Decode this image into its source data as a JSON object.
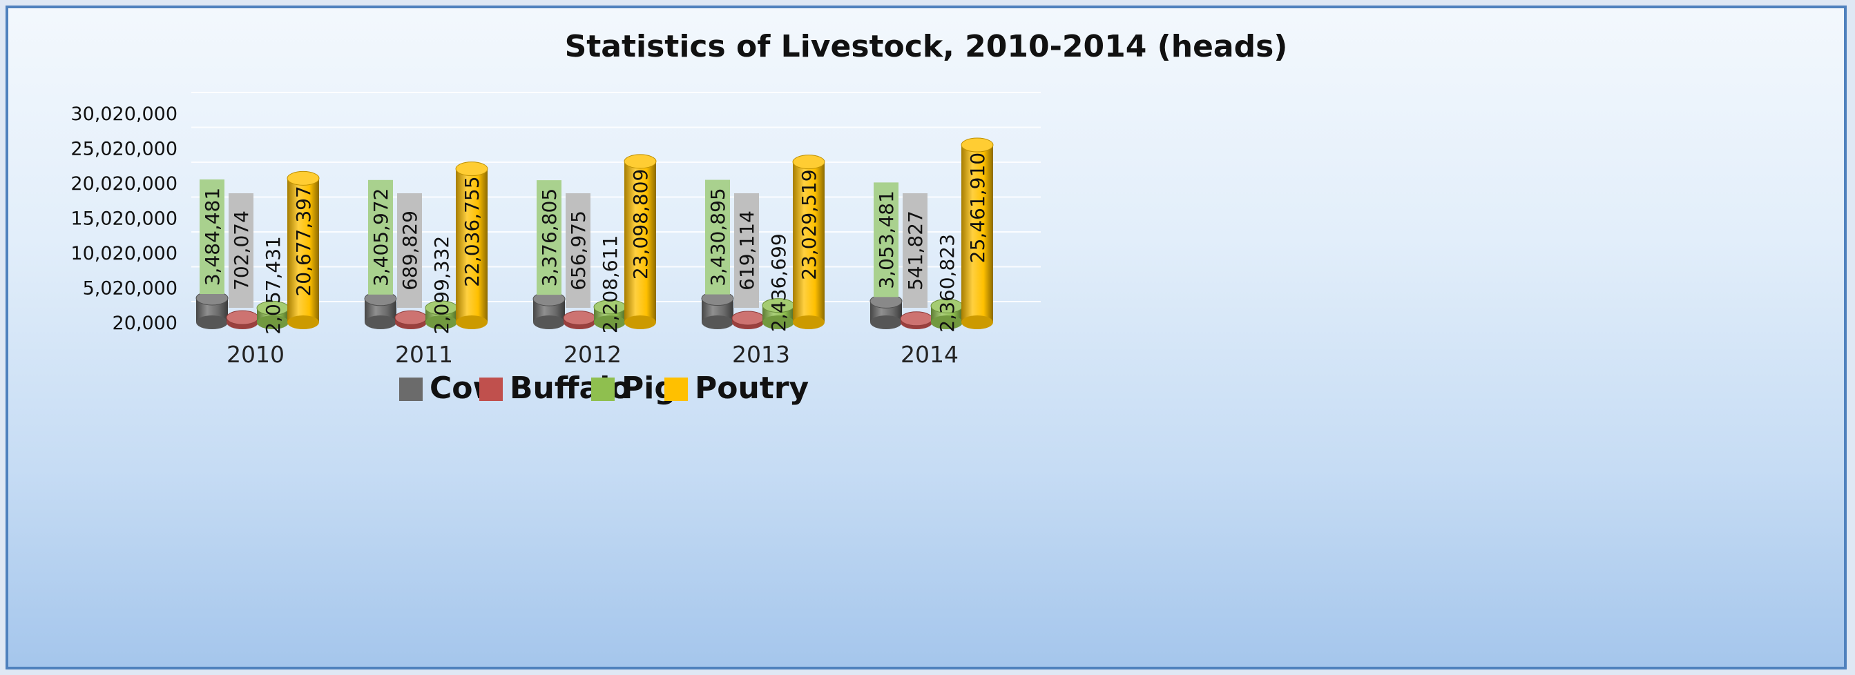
{
  "chart_data": {
    "type": "bar",
    "title": "Statistics of Livestock, 2010-2014 (heads)",
    "categories": [
      "2010",
      "2011",
      "2012",
      "2013",
      "2014"
    ],
    "ylim": [
      20000,
      30020000
    ],
    "yticks": [
      20000,
      5020000,
      10020000,
      15020000,
      20020000,
      25020000,
      30020000
    ],
    "ytick_labels": [
      "20,000",
      "5,020,000",
      "10,020,000",
      "15,020,000",
      "20,020,000",
      "25,020,000",
      "30,020,000"
    ],
    "grid": true,
    "legend_position": "bottom",
    "series": [
      {
        "name": "Cow",
        "color": "#6b6b6b",
        "values": [
          3484481,
          3405972,
          3376805,
          3430895,
          3053481
        ],
        "labels": [
          "3,484,481",
          "3,405,972",
          "3,376,805",
          "3,430,895",
          "3,053,481"
        ],
        "label_bg": "#a9d18e"
      },
      {
        "name": "Buffalo",
        "color": "#c0504d",
        "values": [
          702074,
          689829,
          656975,
          619114,
          541827
        ],
        "labels": [
          "702,074",
          "689,829",
          "656,975",
          "619,114",
          "541,827"
        ],
        "label_bg": "#bfbfbf"
      },
      {
        "name": "Pig",
        "color": "#8fbf4f",
        "values": [
          2057431,
          2099332,
          2208611,
          2436699,
          2360823
        ],
        "labels": [
          "2,057,431",
          "2,099,332",
          "2,208,611",
          "2,436,699",
          "2,360,823"
        ],
        "label_bg": ""
      },
      {
        "name": "Poutry",
        "color": "#ffc000",
        "values": [
          20677397,
          22036755,
          23098809,
          23029519,
          25461910
        ],
        "labels": [
          "20,677,397",
          "22,036,755",
          "23,098,809",
          "23,029,519",
          "25,461,910"
        ],
        "label_bg": ""
      }
    ]
  }
}
